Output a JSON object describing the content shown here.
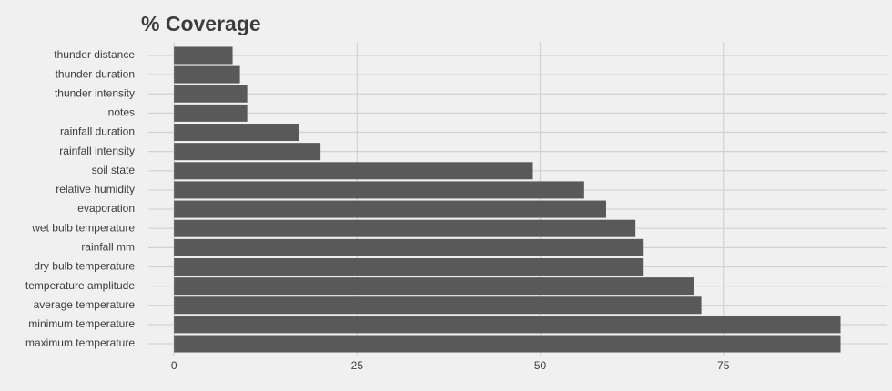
{
  "chart_data": {
    "type": "barh",
    "title": "% Coverage",
    "categories": [
      "thunder distance",
      "thunder duration",
      "thunder intensity",
      "notes",
      "rainfall duration",
      "rainfall intensity",
      "soil state",
      "relative humidity",
      "evaporation",
      "wet bulb temperature",
      "rainfall mm",
      "dry bulb temperature",
      "temperature amplitude",
      "average temperature",
      "minimum temperature",
      "maximum temperature"
    ],
    "values": [
      8,
      9,
      10,
      10,
      17,
      20,
      49,
      56,
      59,
      63,
      64,
      64,
      71,
      72,
      91,
      91
    ],
    "color": "#595959",
    "xlim": [
      -3.5,
      97.4
    ],
    "xticks": [
      0,
      25,
      50,
      75
    ],
    "grid": true
  }
}
